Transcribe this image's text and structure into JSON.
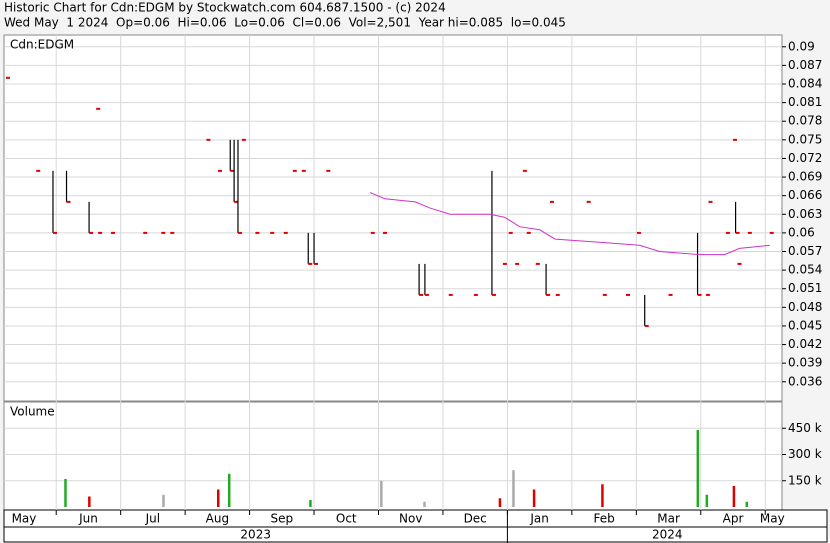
{
  "header": {
    "title": "Historic Chart for Cdn:EDGM by Stockwatch.com 604.687.1500 - (c) 2024",
    "info": "Wed May  1 2024  Op=0.06  Hi=0.06  Lo=0.06  Cl=0.06  Vol=2,501  Year hi=0.085  lo=0.045"
  },
  "x_axis": {
    "months": [
      "May",
      "Jun",
      "Jul",
      "Aug",
      "Sep",
      "Oct",
      "Nov",
      "Dec",
      "Jan",
      "Feb",
      "Mar",
      "Apr",
      "May"
    ],
    "years": [
      "2023",
      "2024"
    ],
    "xlim": [
      0.19,
      12.26
    ],
    "month_edges": [
      1,
      2,
      3,
      4,
      5,
      6,
      7,
      8,
      9,
      10,
      11,
      12
    ]
  },
  "chart_data": [
    {
      "type": "ohlc",
      "title": "Cdn:EDGM",
      "x": [
        0.22,
        0.69,
        0.95,
        1.16,
        1.51,
        1.62,
        1.65,
        1.85,
        2.35,
        2.63,
        2.77,
        3.33,
        3.51,
        3.7,
        3.76,
        3.82,
        3.88,
        4.09,
        4.32,
        4.53,
        4.67,
        4.81,
        4.91,
        5.0,
        5.19,
        5.88,
        6.07,
        6.63,
        6.72,
        7.09,
        7.48,
        7.76,
        7.93,
        8.02,
        8.12,
        8.24,
        8.3,
        8.44,
        8.6,
        8.66,
        8.75,
        9.23,
        9.48,
        9.84,
        10.01,
        10.13,
        10.5,
        10.95,
        11.08,
        11.12,
        11.39,
        11.5,
        11.54,
        11.57,
        11.73,
        12.07
      ],
      "high": [
        0.085,
        0.07,
        0.07,
        0.07,
        0.065,
        0.08,
        0.06,
        0.06,
        0.06,
        0.06,
        0.06,
        0.075,
        0.07,
        0.075,
        0.075,
        0.075,
        0.075,
        0.06,
        0.06,
        0.06,
        0.07,
        0.07,
        0.06,
        0.06,
        0.07,
        0.06,
        0.06,
        0.055,
        0.055,
        0.05,
        0.05,
        0.07,
        0.055,
        0.06,
        0.055,
        0.07,
        0.06,
        0.055,
        0.055,
        0.065,
        0.05,
        0.065,
        0.05,
        0.05,
        0.06,
        0.05,
        0.05,
        0.06,
        0.05,
        0.065,
        0.06,
        0.075,
        0.065,
        0.055,
        0.06,
        0.06
      ],
      "low": [
        0.085,
        0.07,
        0.06,
        0.065,
        0.06,
        0.08,
        0.06,
        0.06,
        0.06,
        0.06,
        0.06,
        0.075,
        0.07,
        0.07,
        0.065,
        0.06,
        0.075,
        0.06,
        0.06,
        0.06,
        0.07,
        0.07,
        0.055,
        0.055,
        0.07,
        0.06,
        0.06,
        0.05,
        0.05,
        0.05,
        0.05,
        0.05,
        0.055,
        0.06,
        0.055,
        0.07,
        0.06,
        0.055,
        0.05,
        0.065,
        0.05,
        0.065,
        0.05,
        0.05,
        0.06,
        0.045,
        0.05,
        0.05,
        0.05,
        0.065,
        0.06,
        0.075,
        0.06,
        0.055,
        0.06,
        0.06
      ],
      "close": [
        0.085,
        0.07,
        0.06,
        0.065,
        0.06,
        0.08,
        0.06,
        0.06,
        0.06,
        0.06,
        0.06,
        0.075,
        0.07,
        0.07,
        0.065,
        0.06,
        0.075,
        0.06,
        0.06,
        0.06,
        0.07,
        0.07,
        0.055,
        0.055,
        0.07,
        0.06,
        0.06,
        0.05,
        0.05,
        0.05,
        0.05,
        0.05,
        0.055,
        0.06,
        0.055,
        0.07,
        0.06,
        0.055,
        0.05,
        0.065,
        0.05,
        0.065,
        0.05,
        0.05,
        0.06,
        0.045,
        0.05,
        0.05,
        0.05,
        0.065,
        0.06,
        0.075,
        0.06,
        0.055,
        0.06,
        0.06
      ],
      "bar_color": "#000000",
      "close_color": "#dd0000",
      "ma": {
        "color": "#cc33cc",
        "x": [
          5.87,
          6.1,
          6.57,
          6.8,
          7.11,
          7.73,
          7.96,
          8.19,
          8.5,
          8.74,
          9.43,
          10.05,
          10.36,
          10.98,
          11.37,
          11.6,
          12.07
        ],
        "values": [
          0.0665,
          0.0655,
          0.065,
          0.064,
          0.063,
          0.063,
          0.0625,
          0.061,
          0.0605,
          0.059,
          0.0585,
          0.058,
          0.057,
          0.0565,
          0.0565,
          0.0575,
          0.058
        ]
      },
      "ylim": [
        0.0329,
        0.0919
      ],
      "yticks": [
        0.09,
        0.087,
        0.084,
        0.081,
        0.078,
        0.075,
        0.072,
        0.069,
        0.066,
        0.063,
        0.06,
        0.057,
        0.054,
        0.051,
        0.048,
        0.045,
        0.042,
        0.039,
        0.036
      ],
      "grid": true
    },
    {
      "type": "volume",
      "title": "Volume",
      "x": [
        1.14,
        1.51,
        2.66,
        3.51,
        3.68,
        4.94,
        6.04,
        6.71,
        7.88,
        8.09,
        8.41,
        9.47,
        10.95,
        11.09,
        11.51,
        11.71
      ],
      "values": [
        160000,
        60000,
        70000,
        100000,
        190000,
        40000,
        150000,
        30000,
        50000,
        210000,
        100000,
        130000,
        440000,
        70000,
        120000,
        30000
      ],
      "colors": [
        "#22aa22",
        "#dd0000",
        "#aaaaaa",
        "#dd0000",
        "#22aa22",
        "#22aa22",
        "#aaaaaa",
        "#aaaaaa",
        "#dd0000",
        "#aaaaaa",
        "#dd0000",
        "#dd0000",
        "#22aa22",
        "#22aa22",
        "#dd0000",
        "#22aa22"
      ],
      "ylim": [
        0,
        600000
      ],
      "yticks": [
        {
          "value": 150000,
          "label": "150 k"
        },
        {
          "value": 300000,
          "label": "300 k"
        },
        {
          "value": 450000,
          "label": "450 k"
        }
      ],
      "grid": true
    }
  ]
}
